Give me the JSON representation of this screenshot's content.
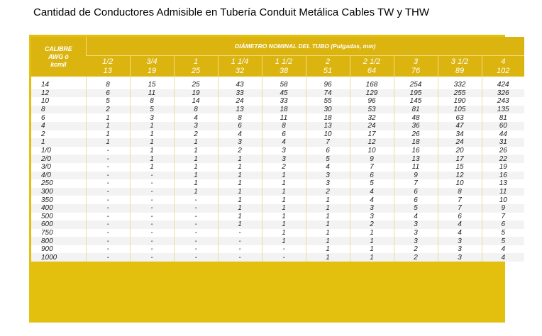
{
  "title": "Cantidad de Conductores Admisible en Tubería Conduit Metálica Cables TW y THW",
  "table": {
    "corner_header": [
      "CALIBRE",
      "AWG ó",
      "kcmil"
    ],
    "group_header": "DIÁMETRO NOMINAL DEL TUBO (Pulgadas, mm)",
    "columns": [
      {
        "inch": "1/2",
        "mm": "13"
      },
      {
        "inch": "3/4",
        "mm": "19"
      },
      {
        "inch": "1",
        "mm": "25"
      },
      {
        "inch": "1 1/4",
        "mm": "32"
      },
      {
        "inch": "1 1/2",
        "mm": "38"
      },
      {
        "inch": "2",
        "mm": "51"
      },
      {
        "inch": "2 1/2",
        "mm": "64"
      },
      {
        "inch": "3",
        "mm": "76"
      },
      {
        "inch": "3 1/2",
        "mm": "89"
      },
      {
        "inch": "4",
        "mm": "102"
      }
    ],
    "rows": [
      {
        "calibre": "14",
        "values": [
          "8",
          "15",
          "25",
          "43",
          "58",
          "96",
          "168",
          "254",
          "332",
          "424"
        ]
      },
      {
        "calibre": "12",
        "values": [
          "6",
          "11",
          "19",
          "33",
          "45",
          "74",
          "129",
          "195",
          "255",
          "326"
        ]
      },
      {
        "calibre": "10",
        "values": [
          "5",
          "8",
          "14",
          "24",
          "33",
          "55",
          "96",
          "145",
          "190",
          "243"
        ]
      },
      {
        "calibre": "8",
        "values": [
          "2",
          "5",
          "8",
          "13",
          "18",
          "30",
          "53",
          "81",
          "105",
          "135"
        ]
      },
      {
        "calibre": "6",
        "values": [
          "1",
          "3",
          "4",
          "8",
          "11",
          "18",
          "32",
          "48",
          "63",
          "81"
        ]
      },
      {
        "calibre": "4",
        "values": [
          "1",
          "1",
          "3",
          "6",
          "8",
          "13",
          "24",
          "36",
          "47",
          "60"
        ]
      },
      {
        "calibre": "2",
        "values": [
          "1",
          "1",
          "2",
          "4",
          "6",
          "10",
          "17",
          "26",
          "34",
          "44"
        ]
      },
      {
        "calibre": "1",
        "values": [
          "1",
          "1",
          "1",
          "3",
          "4",
          "7",
          "12",
          "18",
          "24",
          "31"
        ]
      },
      {
        "calibre": "1/0",
        "values": [
          "-",
          "1",
          "1",
          "2",
          "3",
          "6",
          "10",
          "16",
          "20",
          "26"
        ]
      },
      {
        "calibre": "2/0",
        "values": [
          "-",
          "1",
          "1",
          "1",
          "3",
          "5",
          "9",
          "13",
          "17",
          "22"
        ]
      },
      {
        "calibre": "3/0",
        "values": [
          "-",
          "1",
          "1",
          "1",
          "2",
          "4",
          "7",
          "11",
          "15",
          "19"
        ]
      },
      {
        "calibre": "4/0",
        "values": [
          "-",
          "-",
          "1",
          "1",
          "1",
          "3",
          "6",
          "9",
          "12",
          "16"
        ]
      },
      {
        "calibre": "250",
        "values": [
          "-",
          "-",
          "1",
          "1",
          "1",
          "3",
          "5",
          "7",
          "10",
          "13"
        ]
      },
      {
        "calibre": "300",
        "values": [
          "-",
          "-",
          "1",
          "1",
          "1",
          "2",
          "4",
          "6",
          "8",
          "11"
        ]
      },
      {
        "calibre": "350",
        "values": [
          "-",
          "-",
          "-",
          "1",
          "1",
          "1",
          "4",
          "6",
          "7",
          "10"
        ]
      },
      {
        "calibre": "400",
        "values": [
          "-",
          "-",
          "-",
          "1",
          "1",
          "1",
          "3",
          "5",
          "7",
          "9"
        ]
      },
      {
        "calibre": "500",
        "values": [
          "-",
          "-",
          "-",
          "1",
          "1",
          "1",
          "3",
          "4",
          "6",
          "7"
        ]
      },
      {
        "calibre": "600",
        "values": [
          "-",
          "-",
          "-",
          "1",
          "1",
          "1",
          "2",
          "3",
          "4",
          "6"
        ]
      },
      {
        "calibre": "750",
        "values": [
          "-",
          "-",
          "-",
          "-",
          "1",
          "1",
          "1",
          "3",
          "4",
          "5"
        ]
      },
      {
        "calibre": "800",
        "values": [
          "-",
          "-",
          "-",
          "-",
          "1",
          "1",
          "1",
          "3",
          "3",
          "5"
        ]
      },
      {
        "calibre": "900",
        "values": [
          "-",
          "-",
          "-",
          "-",
          "-",
          "1",
          "1",
          "2",
          "3",
          "4"
        ]
      },
      {
        "calibre": "1000",
        "values": [
          "-",
          "-",
          "-",
          "-",
          "-",
          "1",
          "1",
          "2",
          "3",
          "4"
        ]
      }
    ]
  }
}
